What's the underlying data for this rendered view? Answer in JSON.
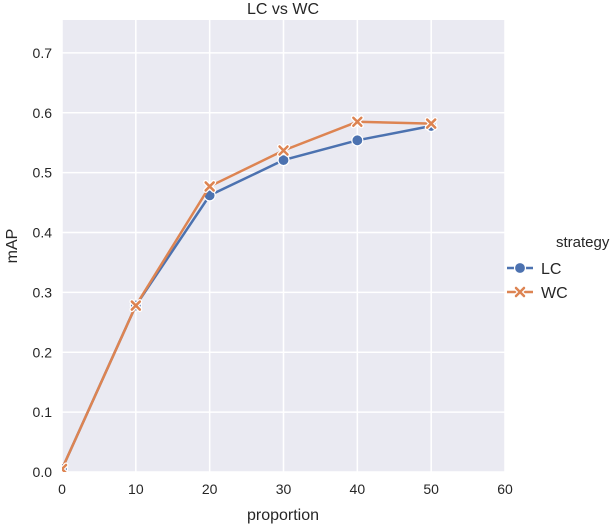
{
  "chart_data": {
    "type": "line",
    "title": "LC vs WC",
    "xlabel": "proportion",
    "ylabel": "mAP",
    "xlim": [
      0,
      60
    ],
    "ylim": [
      0,
      0.755
    ],
    "xticks": [
      "0",
      "10",
      "20",
      "30",
      "40",
      "50",
      "60"
    ],
    "yticks": [
      "0.0",
      "0.1",
      "0.2",
      "0.3",
      "0.4",
      "0.5",
      "0.6",
      "0.7"
    ],
    "grid": true,
    "legend": {
      "title": "strategy",
      "placement": "right"
    },
    "x": [
      0,
      10,
      20,
      30,
      40,
      50
    ],
    "series": [
      {
        "name": "LC",
        "values": [
          0.005,
          0.278,
          0.462,
          0.521,
          0.554,
          0.578
        ],
        "color": "#4c72b0",
        "marker": "circle"
      },
      {
        "name": "WC",
        "values": [
          0.005,
          0.278,
          0.477,
          0.537,
          0.585,
          0.582
        ],
        "color": "#dd8452",
        "marker": "x"
      }
    ]
  }
}
